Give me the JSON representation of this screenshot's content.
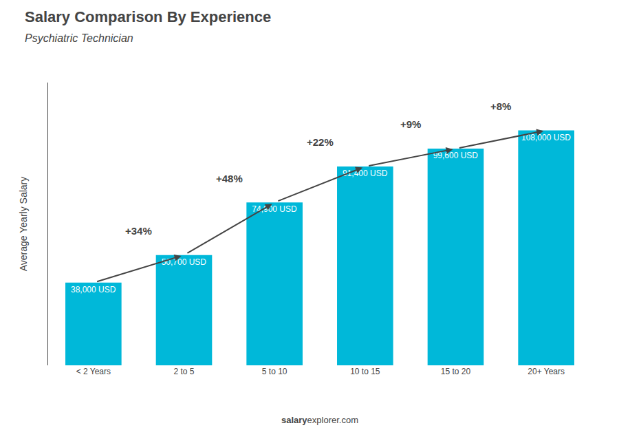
{
  "chart_data": {
    "type": "bar",
    "title": "Salary Comparison By Experience",
    "subtitle": "Psychiatric Technician",
    "ylabel": "Average Yearly Salary",
    "categories": [
      "< 2 Years",
      "2 to 5",
      "5 to 10",
      "10 to 15",
      "15 to 20",
      "20+ Years"
    ],
    "values": [
      38000,
      50700,
      74900,
      91400,
      99600,
      108000
    ],
    "value_labels": [
      "38,000 USD",
      "50,700 USD",
      "74,900 USD",
      "91,400 USD",
      "99,600 USD",
      "108,000 USD"
    ],
    "data_labels": true,
    "color": "#00b8d9",
    "ylim": [
      0,
      130000
    ],
    "tick_labels": "x",
    "grid": false,
    "annotations": [
      {
        "text": "+34%",
        "from": "< 2 Years",
        "to": "2 to 5"
      },
      {
        "text": "+48%",
        "from": "2 to 5",
        "to": "5 to 10"
      },
      {
        "text": "+22%",
        "from": "5 to 10",
        "to": "10 to 15"
      },
      {
        "text": "+9%",
        "from": "10 to 15",
        "to": "15 to 20"
      },
      {
        "text": "+8%",
        "from": "15 to 20",
        "to": "20+ Years"
      },
      {
        "text": "salary"
      },
      {
        "text": "explorer.com"
      }
    ]
  }
}
